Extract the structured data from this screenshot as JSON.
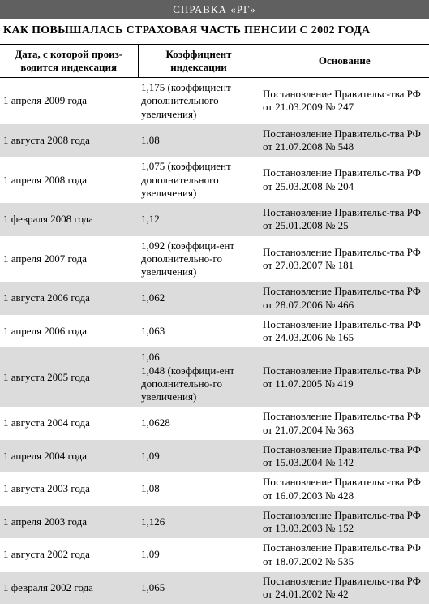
{
  "header_bar": "СПРАВКА «РГ»",
  "title": "КАК ПОВЫШАЛАСЬ СТРАХОВАЯ ЧАСТЬ ПЕНСИИ С 2002 ГОДА",
  "columns": {
    "date": "Дата, с которой произ-водится индексация",
    "coef": "Коэффициент индексации",
    "basis": "Основание"
  },
  "rows": [
    {
      "date": "1 апреля 2009 года",
      "coef": "1,175 (коэффициент дополнительного увеличения)",
      "basis": "Постановление Правительс-тва РФ от 21.03.2009 № 247"
    },
    {
      "date": "1 августа 2008 года",
      "coef": "1,08",
      "basis": "Постановление Правительс-тва РФ от 21.07.2008 № 548"
    },
    {
      "date": "1 апреля 2008 года",
      "coef": "1,075 (коэффициент дополнительного увеличения)",
      "basis": "Постановление Правительс-тва РФ от 25.03.2008 № 204"
    },
    {
      "date": "1 февраля 2008 года",
      "coef": "1,12",
      "basis": "Постановление Правительс-тва РФ от 25.01.2008 № 25"
    },
    {
      "date": "1 апреля 2007 года",
      "coef": "1,092   (коэффици-ент дополнительно-го увеличения)",
      "basis": "Постановление Правительс-тва РФ от 27.03.2007 № 181"
    },
    {
      "date": "1 августа 2006 года",
      "coef": "1,062",
      "basis": "Постановление Правительс-тва РФ от 28.07.2006 № 466"
    },
    {
      "date": "1 апреля 2006 года",
      "coef": "1,063",
      "basis": "Постановление Правительс-тва РФ от 24.03.2006 № 165"
    },
    {
      "date": "1 августа 2005 года",
      "coef": "1,06\n1,048   (коэффици-ент дополнительно-го увеличения)",
      "basis": "Постановление Правительс-тва РФ от 11.07.2005 № 419"
    },
    {
      "date": "1 августа 2004 года",
      "coef": "1,0628",
      "basis": "Постановление Правительс-тва РФ от 21.07.2004 № 363"
    },
    {
      "date": "1 апреля 2004 года",
      "coef": "1,09",
      "basis": "Постановление Правительс-тва РФ от 15.03.2004 № 142"
    },
    {
      "date": "1 августа 2003 года",
      "coef": "1,08",
      "basis": "Постановление Правительс-тва РФ от 16.07.2003 № 428"
    },
    {
      "date": "1 апреля 2003 года",
      "coef": "1,126",
      "basis": "Постановление Правительс-тва РФ от 13.03.2003 № 152"
    },
    {
      "date": "1 августа 2002 года",
      "coef": "1,09",
      "basis": "Постановление Правительс-тва РФ от 18.07.2002 № 535"
    },
    {
      "date": "1 февраля 2002 года",
      "coef": "1,065",
      "basis": "Постановление Правительс-тва РФ от 24.01.2002 № 42"
    }
  ]
}
